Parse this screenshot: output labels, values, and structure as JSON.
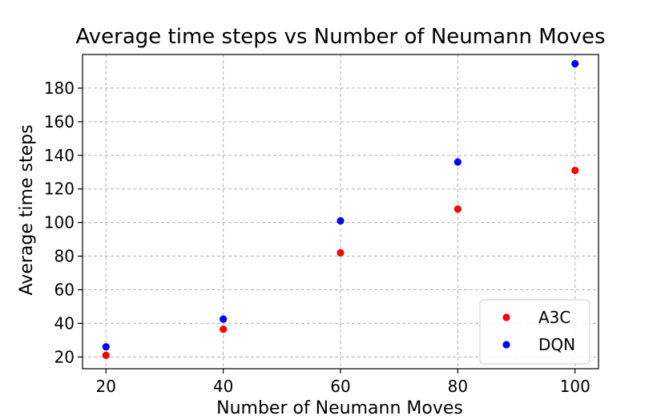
{
  "chart_data": {
    "type": "scatter",
    "title": "Average time steps vs Number of Neumann Moves",
    "xlabel": "Number of Neumann Moves",
    "ylabel": "Average time steps",
    "x_ticks": [
      20,
      40,
      60,
      80,
      100
    ],
    "y_ticks": [
      20,
      40,
      60,
      80,
      100,
      120,
      140,
      160,
      180
    ],
    "xlim": [
      16,
      104
    ],
    "ylim": [
      13,
      200
    ],
    "grid": true,
    "legend_position": "bottom-right",
    "series": [
      {
        "name": "A3C",
        "color": "#ff0000",
        "points": [
          {
            "x": 20,
            "y": 21
          },
          {
            "x": 40,
            "y": 36.5
          },
          {
            "x": 60,
            "y": 82
          },
          {
            "x": 80,
            "y": 108
          },
          {
            "x": 100,
            "y": 131
          }
        ]
      },
      {
        "name": "DQN",
        "color": "#0000ff",
        "points": [
          {
            "x": 20,
            "y": 26
          },
          {
            "x": 40,
            "y": 42.5
          },
          {
            "x": 60,
            "y": 101
          },
          {
            "x": 80,
            "y": 136
          },
          {
            "x": 100,
            "y": 194.5
          }
        ]
      }
    ]
  }
}
